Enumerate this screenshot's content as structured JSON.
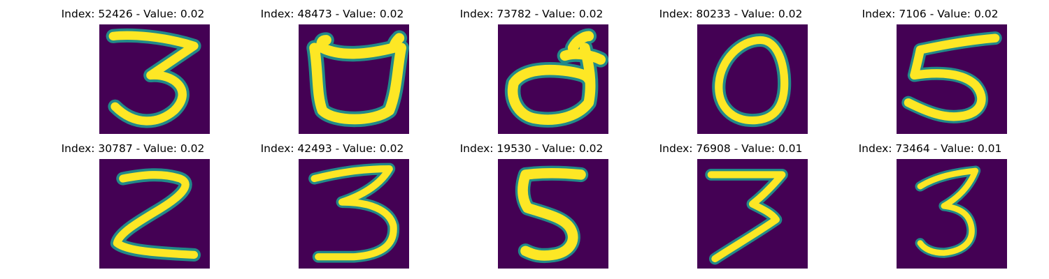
{
  "colors": {
    "background": "#440154",
    "edge": "#21918c",
    "mid": "#5ec962",
    "stroke": "#fde725"
  },
  "panels": [
    {
      "title": "Index: 52426 - Value: 0.02",
      "digit": "3"
    },
    {
      "title": "Index: 48473 - Value: 0.02",
      "digit": "open-loop"
    },
    {
      "title": "Index: 73782 - Value: 0.02",
      "digit": "loop-with-hook"
    },
    {
      "title": "Index: 80233 - Value: 0.02",
      "digit": "0"
    },
    {
      "title": "Index: 7106 - Value: 0.02",
      "digit": "5"
    },
    {
      "title": "Index: 30787 - Value: 0.02",
      "digit": "2"
    },
    {
      "title": "Index: 42493 - Value: 0.02",
      "digit": "3"
    },
    {
      "title": "Index: 19530 - Value: 0.02",
      "digit": "5"
    },
    {
      "title": "Index: 76908 - Value: 0.01",
      "digit": "7"
    },
    {
      "title": "Index: 73464 - Value: 0.01",
      "digit": "3"
    }
  ]
}
